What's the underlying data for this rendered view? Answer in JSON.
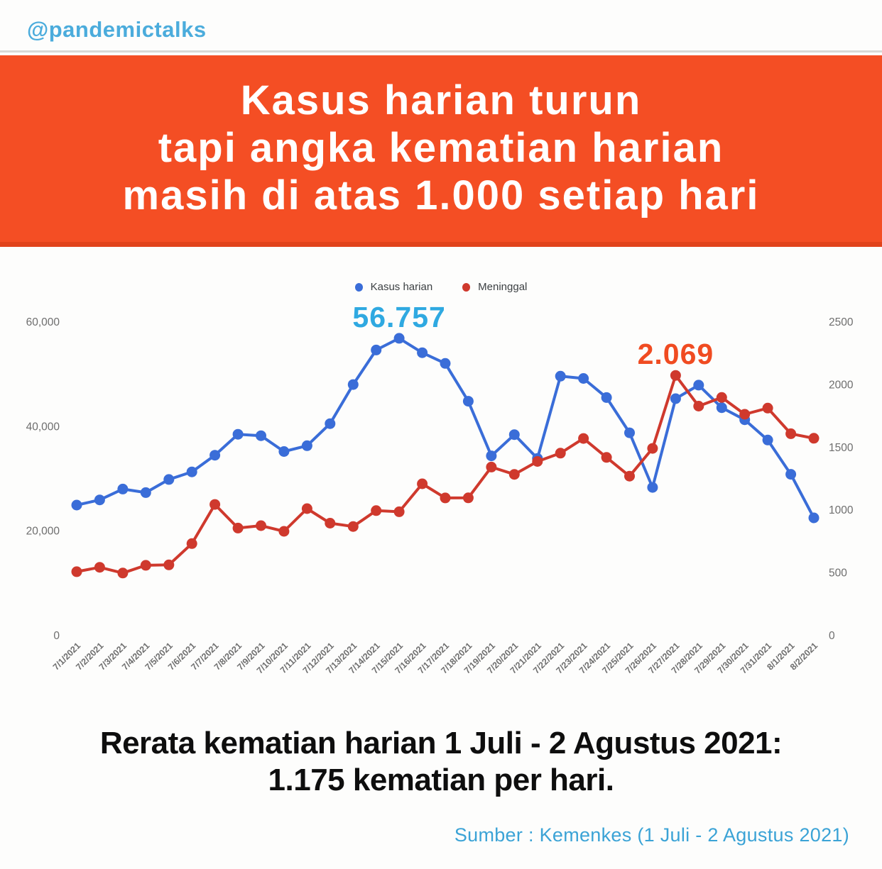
{
  "header": {
    "handle": "@pandemictalks"
  },
  "banner": {
    "lines": [
      "Kasus harian turun",
      "tapi angka kematian harian",
      "masih di atas 1.000 setiap hari"
    ],
    "bg_color": "#F44E24",
    "text_color": "#FFFFFF"
  },
  "colors": {
    "accent_blue": "#4BACDC",
    "banner_orange": "#F44E24",
    "cases_line": "#3A6DD8",
    "deaths_line": "#CF392D",
    "annotation_cases": "#2FA9E1",
    "annotation_deaths": "#F04B21",
    "axis_text": "#6E6E6E"
  },
  "chart_data": {
    "type": "line",
    "title": "",
    "legend_position": "top",
    "grid": false,
    "categories": [
      "7/1/2021",
      "7/2/2021",
      "7/3/2021",
      "7/4/2021",
      "7/5/2021",
      "7/6/2021",
      "7/7/2021",
      "7/8/2021",
      "7/9/2021",
      "7/10/2021",
      "7/11/2021",
      "7/12/2021",
      "7/13/2021",
      "7/14/2021",
      "7/15/2021",
      "7/16/2021",
      "7/17/2021",
      "7/18/2021",
      "7/19/2021",
      "7/20/2021",
      "7/21/2021",
      "7/22/2021",
      "7/23/2021",
      "7/24/2021",
      "7/25/2021",
      "7/26/2021",
      "7/27/2021",
      "7/28/2021",
      "7/29/2021",
      "7/30/2021",
      "7/31/2021",
      "8/1/2021",
      "8/2/2021"
    ],
    "series": [
      {
        "name": "Kasus harian",
        "axis": "left",
        "color": "#3A6DD8",
        "values": [
          24836,
          25830,
          27913,
          27233,
          29745,
          31189,
          34379,
          38391,
          38124,
          35094,
          36197,
          40427,
          47899,
          54517,
          56757,
          54000,
          51952,
          44721,
          34257,
          38325,
          33772,
          49509,
          49071,
          45416,
          38679,
          28228,
          45203,
          47791,
          43479,
          41168,
          37284,
          30738,
          22404
        ]
      },
      {
        "name": "Meninggal",
        "axis": "right",
        "color": "#CF392D",
        "values": [
          504,
          539,
          493,
          555,
          558,
          728,
          1040,
          852,
          871,
          826,
          1007,
          891,
          864,
          991,
          982,
          1205,
          1092,
          1093,
          1338,
          1280,
          1383,
          1449,
          1566,
          1415,
          1266,
          1487,
          2069,
          1824,
          1893,
          1759,
          1808,
          1604,
          1568
        ]
      }
    ],
    "left_axis": {
      "min": 0,
      "max": 60000,
      "tick_values": [
        60000,
        40000,
        20000,
        0
      ],
      "tick_labels": [
        "60,000",
        "40,000",
        "20,000",
        "0"
      ]
    },
    "right_axis": {
      "min": 0,
      "max": 2500,
      "tick_values": [
        2500,
        2000,
        1500,
        1000,
        500,
        0
      ],
      "tick_labels": [
        "2500",
        "2000",
        "1500",
        "1000",
        "500",
        "0"
      ]
    },
    "annotations": [
      {
        "text": "56.757",
        "series": "Kasus harian",
        "category": "7/15/2021",
        "color": "#2FA9E1"
      },
      {
        "text": "2.069",
        "series": "Meninggal",
        "category": "7/27/2021",
        "color": "#F04B21"
      }
    ]
  },
  "summary": {
    "line1": "Rerata kematian harian 1 Juli - 2 Agustus 2021:",
    "line2": "1.175 kematian per hari."
  },
  "footer": {
    "source": "Sumber : Kemenkes (1 Juli - 2 Agustus 2021)"
  }
}
